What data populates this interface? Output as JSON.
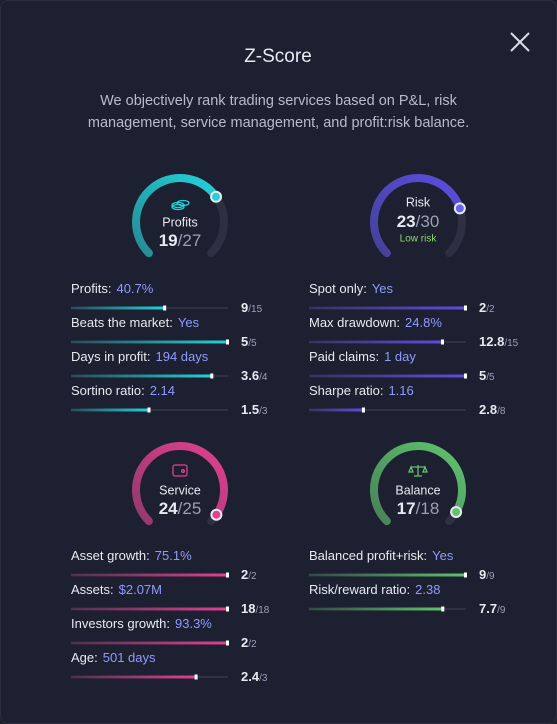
{
  "header": {
    "title": "Z-Score",
    "subtitle": "We objectively rank trading services based on P&L, risk management, service management, and profit:risk balance."
  },
  "sections": [
    {
      "name": "Profits",
      "color": "#22d3d8",
      "score": 19,
      "max": {
        "value": 27,
        "label": "/27"
      },
      "metrics": [
        {
          "label": "Profits:",
          "value": "40.7%",
          "score": 9,
          "max": {
            "value": 15,
            "label": "/15"
          }
        },
        {
          "label": "Beats the market:",
          "value": "Yes",
          "score": 5,
          "max": {
            "value": 5,
            "label": "/5"
          }
        },
        {
          "label": "Days in profit:",
          "value": "194 days",
          "score": 3.6,
          "max": {
            "value": 4,
            "label": "/4"
          }
        },
        {
          "label": "Sortino ratio:",
          "value": "2.14",
          "score": 1.5,
          "max": {
            "value": 3,
            "label": "/3"
          }
        }
      ]
    },
    {
      "name": "Risk",
      "color": "#5b4ee0",
      "score": 23,
      "max": {
        "value": 30,
        "label": "/30"
      },
      "note": "Low risk",
      "metrics": [
        {
          "label": "Spot only:",
          "value": "Yes",
          "score": 2,
          "max": {
            "value": 2,
            "label": "/2"
          }
        },
        {
          "label": "Max drawdown:",
          "value": "24.8%",
          "score": 12.8,
          "max": {
            "value": 15,
            "label": "/15"
          }
        },
        {
          "label": "Paid claims:",
          "value": "1 day",
          "score": 5,
          "max": {
            "value": 5,
            "label": "/5"
          }
        },
        {
          "label": "Sharpe ratio:",
          "value": "1.16",
          "score": 2.8,
          "max": {
            "value": 8,
            "label": "/8"
          }
        }
      ]
    },
    {
      "name": "Service",
      "color": "#e3408f",
      "score": 24,
      "max": {
        "value": 25,
        "label": "/25"
      },
      "metrics": [
        {
          "label": "Asset growth:",
          "value": "75.1%",
          "score": 2,
          "max": {
            "value": 2,
            "label": "/2"
          }
        },
        {
          "label": "Assets:",
          "value": "$2.07M",
          "score": 18,
          "max": {
            "value": 18,
            "label": "/18"
          }
        },
        {
          "label": "Investors growth:",
          "value": "93.3%",
          "score": 2,
          "max": {
            "value": 2,
            "label": "/2"
          }
        },
        {
          "label": "Age:",
          "value": "501 days",
          "score": 2.4,
          "max": {
            "value": 3,
            "label": "/3"
          }
        }
      ]
    },
    {
      "name": "Balance",
      "color": "#5fc46c",
      "score": 17,
      "max": {
        "value": 18,
        "label": "/18"
      },
      "metrics": [
        {
          "label": "Balanced profit+risk:",
          "value": "Yes",
          "score": 9,
          "max": {
            "value": 9,
            "label": "/9"
          }
        },
        {
          "label": "Risk/reward ratio:",
          "value": "2.38",
          "score": 7.7,
          "max": {
            "value": 9,
            "label": "/9"
          }
        }
      ]
    }
  ]
}
